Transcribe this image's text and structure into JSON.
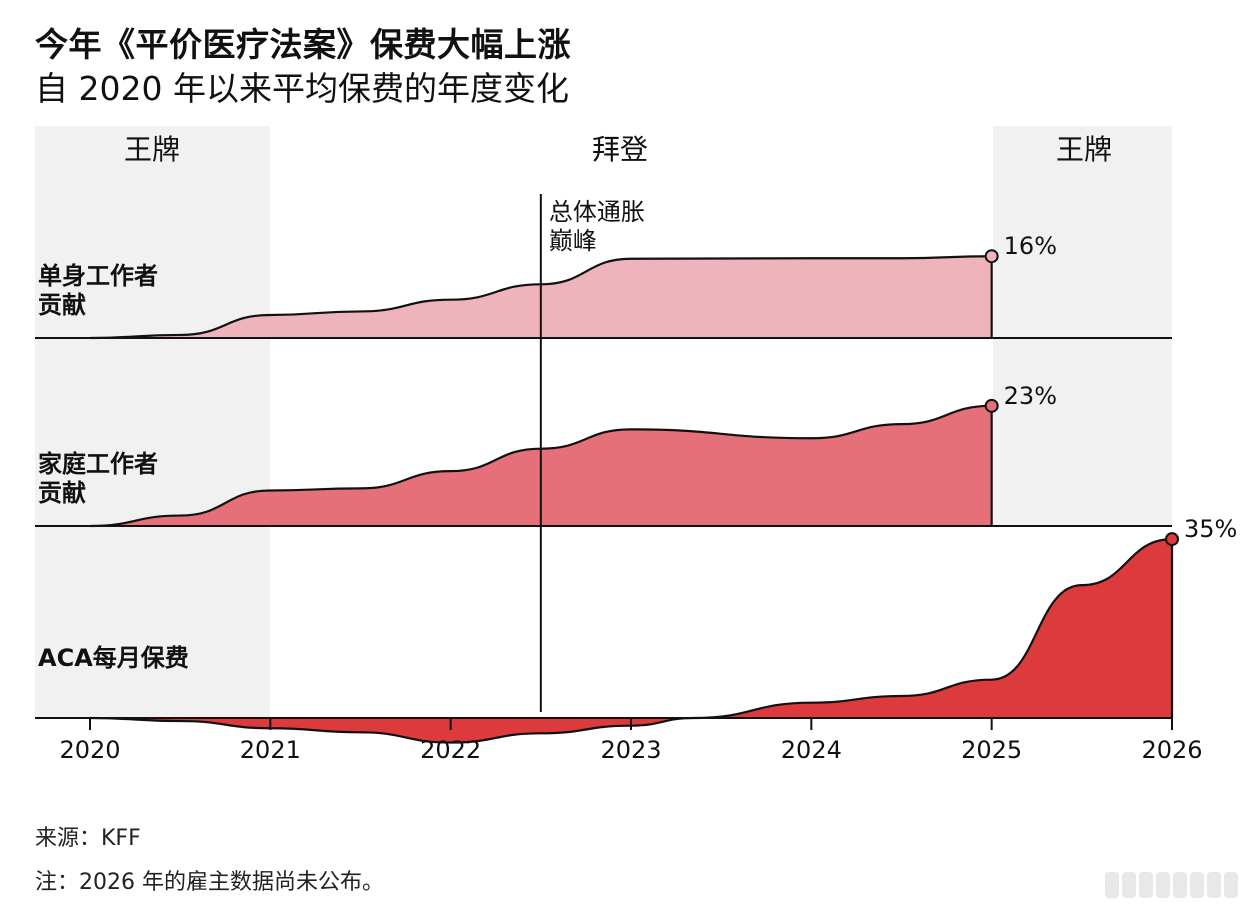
{
  "title": "今年《平价医疗法案》保费大幅上涨",
  "subtitle": "自 2020 年以来平均保费的年度变化",
  "source": "来源：KFF",
  "note": "注：2026 年的雇主数据尚未公布。",
  "colors": {
    "band": "#f1f1f1",
    "single": "#efb3bb",
    "family": "#e5707a",
    "aca": "#dc3a3c",
    "axis": "#111111"
  },
  "chart_data": {
    "type": "area",
    "x_ticks": [
      "2020",
      "2021",
      "2022",
      "2023",
      "2024",
      "2025",
      "2026"
    ],
    "x_range": [
      2020,
      2026
    ],
    "eras": [
      {
        "label": "王牌",
        "start": 2020,
        "end": 2021.3
      },
      {
        "label": "拜登",
        "start": 2021.3,
        "end": 2025
      },
      {
        "label": "王牌",
        "start": 2025,
        "end": 2026
      }
    ],
    "annotation": {
      "label_line1": "总体通胀",
      "label_line2": "巅峰",
      "x": 2022.5
    },
    "panels": [
      {
        "label_line1": "单身工作者",
        "label_line2": "贡献",
        "name": "single-worker-contribution",
        "end_label": "16%",
        "ylim": [
          0,
          18
        ],
        "points": [
          [
            2020,
            0
          ],
          [
            2020.5,
            0.6
          ],
          [
            2021,
            4.5
          ],
          [
            2021.5,
            5.2
          ],
          [
            2022,
            7.5
          ],
          [
            2022.5,
            10.5
          ],
          [
            2023,
            15.5
          ],
          [
            2024,
            15.6
          ],
          [
            2024.5,
            15.6
          ],
          [
            2025,
            16
          ]
        ]
      },
      {
        "label_line1": "家庭工作者",
        "label_line2": "贡献",
        "name": "family-worker-contribution",
        "end_label": "23%",
        "ylim": [
          0,
          24.5
        ],
        "points": [
          [
            2020,
            0
          ],
          [
            2020.5,
            2
          ],
          [
            2021,
            6.8
          ],
          [
            2021.5,
            7.2
          ],
          [
            2022,
            10.5
          ],
          [
            2022.5,
            14.8
          ],
          [
            2023,
            18.5
          ],
          [
            2024,
            16.8
          ],
          [
            2024.5,
            19.5
          ],
          [
            2025,
            23
          ]
        ]
      },
      {
        "label_line1": "ACA每月保费",
        "label_line2": "",
        "name": "aca-monthly-premium",
        "end_label": "35%",
        "ylim": [
          -5,
          36
        ],
        "points": [
          [
            2020,
            0
          ],
          [
            2020.5,
            -0.6
          ],
          [
            2021,
            -2
          ],
          [
            2021.5,
            -2.8
          ],
          [
            2022,
            -4.8
          ],
          [
            2022.5,
            -3
          ],
          [
            2023,
            -1.5
          ],
          [
            2023.35,
            0
          ],
          [
            2024,
            3
          ],
          [
            2024.5,
            4.3
          ],
          [
            2025,
            7.5
          ],
          [
            2025.5,
            26
          ],
          [
            2026,
            35
          ]
        ]
      }
    ]
  }
}
